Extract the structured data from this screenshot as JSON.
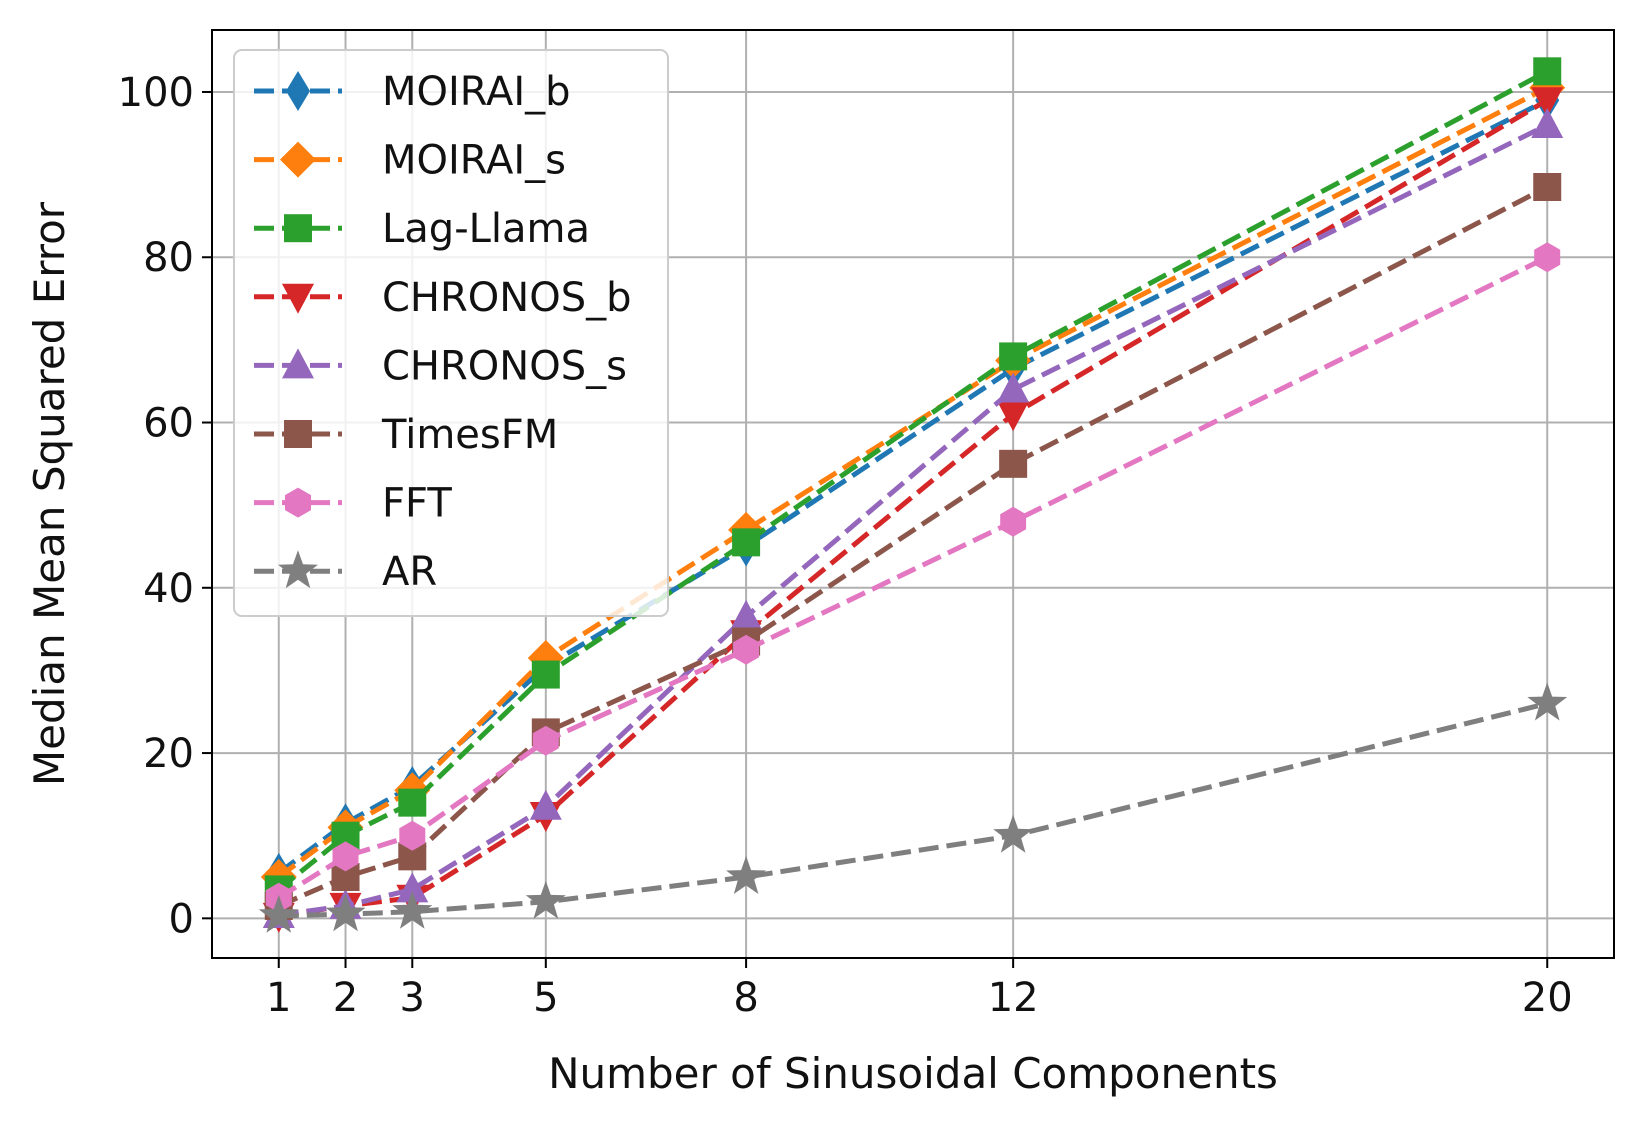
{
  "chart_data": {
    "type": "line",
    "title": "",
    "xlabel": "Number of Sinusoidal Components",
    "ylabel": "Median Mean Squared Error",
    "x": [
      1,
      2,
      3,
      5,
      8,
      12,
      20
    ],
    "x_ticks": [
      "1",
      "2",
      "3",
      "5",
      "8",
      "12",
      "20"
    ],
    "xlim": [
      0.0,
      21.0
    ],
    "ylim": [
      -4.8,
      107.5
    ],
    "y_ticks": [
      "0",
      "20",
      "40",
      "60",
      "80",
      "100"
    ],
    "grid": true,
    "legend_position": "top-left",
    "series": [
      {
        "name": "MOIRAI_b",
        "color": "#1f77b4",
        "marker": "diamond-thin",
        "values": [
          5.5,
          11.5,
          16,
          30.5,
          45,
          66.5,
          99
        ]
      },
      {
        "name": "MOIRAI_s",
        "color": "#ff7f0e",
        "marker": "diamond",
        "values": [
          5,
          11,
          15.5,
          31.5,
          47,
          67.5,
          100.5
        ]
      },
      {
        "name": "Lag-Llama",
        "color": "#2ca02c",
        "marker": "square",
        "values": [
          3.5,
          10,
          14,
          29.5,
          45.5,
          68,
          102.5
        ]
      },
      {
        "name": "CHRONOS_b",
        "color": "#d62728",
        "marker": "triangle-down",
        "values": [
          0.3,
          1.5,
          2.5,
          12.5,
          34.5,
          61,
          99
        ]
      },
      {
        "name": "CHRONOS_s",
        "color": "#9467bd",
        "marker": "triangle-up",
        "values": [
          0.4,
          1.5,
          3.5,
          13.5,
          36.5,
          64,
          96
        ]
      },
      {
        "name": "TimesFM",
        "color": "#8c564b",
        "marker": "square",
        "values": [
          1.5,
          5,
          7.5,
          22.5,
          33.5,
          55,
          88.5
        ]
      },
      {
        "name": "FFT",
        "color": "#e377c2",
        "marker": "hexagon",
        "values": [
          2.5,
          7.5,
          10,
          21.5,
          32.5,
          48,
          80
        ]
      },
      {
        "name": "AR",
        "color": "#7f7f7f",
        "marker": "star",
        "values": [
          0.3,
          0.5,
          0.8,
          2,
          5,
          10,
          26
        ]
      }
    ]
  }
}
